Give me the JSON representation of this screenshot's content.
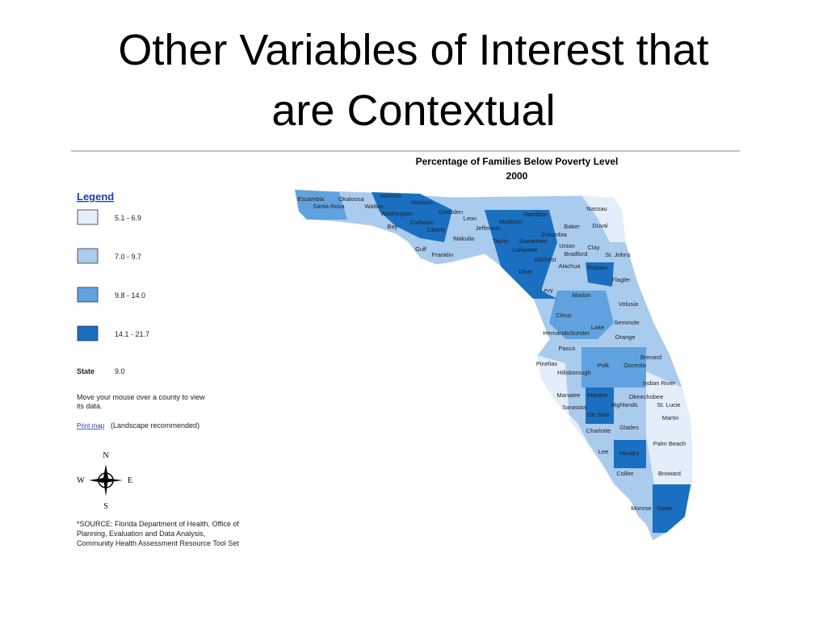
{
  "slide_title": [
    "Other Variables of Interest that",
    "are Contextual"
  ],
  "map": {
    "title": "Percentage of Families Below Poverty Level",
    "subtitle": "2000",
    "counties": [
      "Escambia",
      "Santa Rosa",
      "Okaloosa",
      "Walton",
      "Holmes",
      "Jackson",
      "Washington",
      "Calhoun",
      "Bay",
      "Gadsden",
      "Leon",
      "Liberty",
      "Gulf",
      "Franklin",
      "Wakulla",
      "Jefferson",
      "Madison",
      "Hamilton",
      "Taylor",
      "Suwannee",
      "Lafayette",
      "Columbia",
      "Baker",
      "Nassau",
      "Duval",
      "Union",
      "Bradford",
      "Clay",
      "St. Johns",
      "Gilchrist",
      "Alachua",
      "Putnam",
      "Dixie",
      "Flagler",
      "Levy",
      "Marion",
      "Volusia",
      "Citrus",
      "Lake",
      "Seminole",
      "Hernando",
      "Sumter",
      "Orange",
      "Pasco",
      "Brevard",
      "Pinellas",
      "Hillsborough",
      "Polk",
      "Osceola",
      "Indian River",
      "Manatee",
      "Hardee",
      "Okeechobee",
      "Highlands",
      "St. Lucie",
      "Sarasota",
      "De Soto",
      "Martin",
      "Charlotte",
      "Glades",
      "Palm Beach",
      "Lee",
      "Hendry",
      "Collier",
      "Broward",
      "Monroe",
      "Dade"
    ]
  },
  "legend": {
    "heading": "Legend",
    "classes": [
      {
        "label": "5.1 - 6.9",
        "color": "#e3eefa"
      },
      {
        "label": "7.0 - 9.7",
        "color": "#a9cbee"
      },
      {
        "label": "9.8 - 14.0",
        "color": "#5fa2df"
      },
      {
        "label": "14.1 - 21.7",
        "color": "#1a6fc0"
      }
    ],
    "state_label": "State",
    "state_value": "9.0"
  },
  "note": [
    "Move your mouse over a county to view",
    "its data."
  ],
  "print_link": "Print map",
  "print_note": "(Landscape recommended)",
  "compass": {
    "n": "N",
    "w": "W",
    "e": "E",
    "s": "S"
  },
  "source": [
    "*SOURCE: Florida Department of Health, Office of",
    "Planning, Evaluation and Data Analysis,",
    "Community Health Assessment Resource Tool Set"
  ]
}
